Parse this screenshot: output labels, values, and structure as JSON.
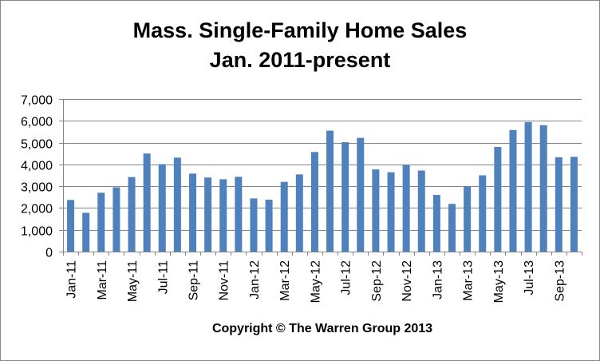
{
  "chart_data": {
    "type": "bar",
    "title": "Mass. Single-Family Home Sales",
    "subtitle": "Jan. 2011-present",
    "footer": "Copyright © The Warren Group 2013",
    "categories": [
      "Jan-11",
      "Feb-11",
      "Mar-11",
      "Apr-11",
      "May-11",
      "Jun-11",
      "Jul-11",
      "Aug-11",
      "Sep-11",
      "Oct-11",
      "Nov-11",
      "Dec-11",
      "Jan-12",
      "Feb-12",
      "Mar-12",
      "Apr-12",
      "May-12",
      "Jun-12",
      "Jul-12",
      "Aug-12",
      "Sep-12",
      "Oct-12",
      "Nov-12",
      "Dec-12",
      "Jan-13",
      "Feb-13",
      "Mar-13",
      "Apr-13",
      "May-13",
      "Jun-13",
      "Jul-13",
      "Aug-13",
      "Sep-13",
      "Oct-13"
    ],
    "x_tick_labels": [
      "Jan-11",
      "Mar-11",
      "May-11",
      "Jul-11",
      "Sep-11",
      "Nov-11",
      "Jan-12",
      "Mar-12",
      "May-12",
      "Jul-12",
      "Sep-12",
      "Nov-12",
      "Jan-13",
      "Mar-13",
      "May-13",
      "Jul-13",
      "Sep-13"
    ],
    "values": [
      2370,
      1780,
      2700,
      2950,
      3420,
      4500,
      4010,
      4310,
      3580,
      3400,
      3320,
      3430,
      2440,
      2380,
      3200,
      3540,
      4570,
      5550,
      5020,
      5220,
      3770,
      3640,
      3990,
      3720,
      2600,
      2190,
      3000,
      3500,
      4800,
      5580,
      5940,
      5800,
      4330,
      4350
    ],
    "ylim": [
      0,
      7000
    ],
    "y_ticks": [
      0,
      1000,
      2000,
      3000,
      4000,
      5000,
      6000,
      7000
    ],
    "y_tick_labels": [
      "0",
      "1,000",
      "2,000",
      "3,000",
      "4,000",
      "5,000",
      "6,000",
      "7,000"
    ],
    "grid": true,
    "legend": false,
    "bar_color": "#4f81bd",
    "grid_color": "#868686"
  }
}
